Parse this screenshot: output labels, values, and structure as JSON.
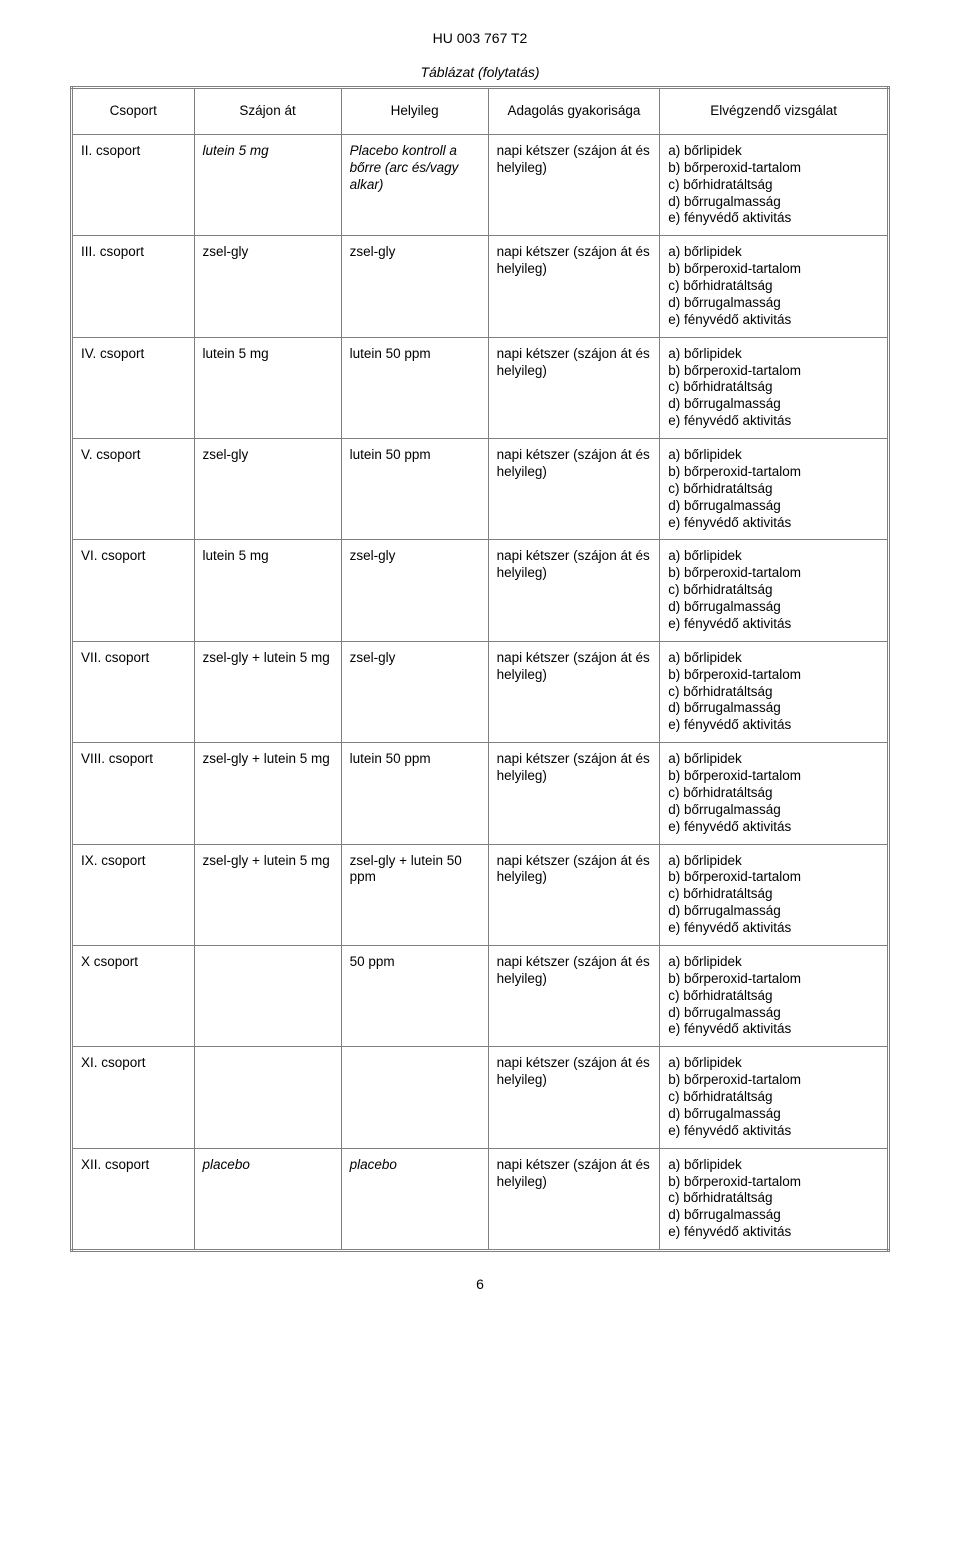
{
  "doc_header": "HU 003 767 T2",
  "table_caption": "Táblázat (folytatás)",
  "headers": {
    "group": "Csoport",
    "oral": "Szájon át",
    "topical": "Helyileg",
    "frequency": "Adagolás gyakorisága",
    "exam": "Elvégzendő vizsgálat"
  },
  "frequency_text": "napi kétszer (szájon át és helyileg)",
  "exam_lines": [
    "a) bőrlipidek",
    "b) bőrperoxid-tartalom",
    "c) bőrhidratáltság",
    "d) bőrrugalmasság",
    "e) fényvédő aktivitás"
  ],
  "rows": [
    {
      "group": "II. csoport",
      "oral": "lutein 5 mg",
      "oral_style": "italic",
      "topical": "Placebo kontroll a bőrre (arc és/vagy alkar)",
      "topical_style": "italic"
    },
    {
      "group": "III. csoport",
      "oral": "zsel-gly",
      "oral_style": "normal",
      "topical": "zsel-gly",
      "topical_style": "normal"
    },
    {
      "group": "IV. csoport",
      "oral": "lutein 5 mg",
      "oral_style": "normal",
      "topical": "lutein 50 ppm",
      "topical_style": "normal"
    },
    {
      "group": "V. csoport",
      "oral": "zsel-gly",
      "oral_style": "normal",
      "topical": "lutein 50 ppm",
      "topical_style": "normal"
    },
    {
      "group": "VI. csoport",
      "oral": "lutein 5 mg",
      "oral_style": "normal",
      "topical": "zsel-gly",
      "topical_style": "normal"
    },
    {
      "group": "VII. csoport",
      "oral": "zsel-gly + lutein 5 mg",
      "oral_style": "normal",
      "topical": "zsel-gly",
      "topical_style": "normal"
    },
    {
      "group": "VIII. csoport",
      "oral": "zsel-gly + lutein 5 mg",
      "oral_style": "normal",
      "topical": "lutein 50 ppm",
      "topical_style": "normal"
    },
    {
      "group": "IX. csoport",
      "oral": "zsel-gly + lutein 5 mg",
      "oral_style": "normal",
      "topical": "zsel-gly + lutein 50 ppm",
      "topical_style": "normal"
    },
    {
      "group": "X csoport",
      "oral": "",
      "oral_style": "normal",
      "topical": "50 ppm",
      "topical_style": "normal"
    },
    {
      "group": "XI. csoport",
      "oral": "",
      "oral_style": "normal",
      "topical": "",
      "topical_style": "normal"
    },
    {
      "group": "XII. csoport",
      "oral": "placebo",
      "oral_style": "italic",
      "topical": "placebo",
      "topical_style": "italic"
    }
  ],
  "page_number": "6"
}
